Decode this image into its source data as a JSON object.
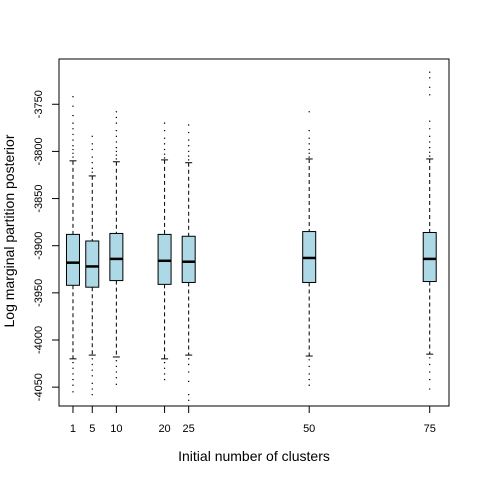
{
  "chart_data": {
    "type": "boxplot",
    "title": "",
    "xlabel": "Initial number of clusters",
    "ylabel": "Log marginal partition posterior",
    "x_ticks": [
      1,
      5,
      10,
      20,
      25,
      50,
      75
    ],
    "y_ticks": [
      -3750,
      -3800,
      -3850,
      -3900,
      -3950,
      -4000,
      -4050
    ],
    "xlim": [
      -1.9,
      79
    ],
    "ylim": [
      -4070,
      -3702
    ],
    "box_color": "#add8e6",
    "grid": false,
    "legend": "none",
    "boxes": [
      {
        "x": 1,
        "whisker_high": -3810,
        "q3": -3888,
        "median": -3918,
        "q1": -3942,
        "whisker_low": -4020,
        "outliers_high": [
          -3742,
          -3752,
          -3762,
          -3770,
          -3776,
          -3782,
          -3788,
          -3794,
          -3798,
          -3802,
          -3806
        ],
        "outliers_low": [
          -4024,
          -4030,
          -4036,
          -4042,
          -4048,
          -4055
        ]
      },
      {
        "x": 5,
        "whisker_high": -3826,
        "q3": -3895,
        "median": -3922,
        "q1": -3944,
        "whisker_low": -4016,
        "outliers_high": [
          -3784,
          -3792,
          -3798,
          -3806,
          -3812,
          -3818,
          -3822
        ],
        "outliers_low": [
          -4020,
          -4026,
          -4032,
          -4038,
          -4046,
          -4052,
          -4058
        ]
      },
      {
        "x": 10,
        "whisker_high": -3811,
        "q3": -3887,
        "median": -3914,
        "q1": -3937,
        "whisker_low": -4018,
        "outliers_high": [
          -3758,
          -3764,
          -3770,
          -3778,
          -3784,
          -3790,
          -3796,
          -3800,
          -3804,
          -3808
        ],
        "outliers_low": [
          -4022,
          -4028,
          -4034,
          -4040,
          -4047
        ]
      },
      {
        "x": 20,
        "whisker_high": -3809,
        "q3": -3888,
        "median": -3916,
        "q1": -3941,
        "whisker_low": -4020,
        "outliers_high": [
          -3770,
          -3778,
          -3786,
          -3792,
          -3798,
          -3803,
          -3807
        ],
        "outliers_low": [
          -4024,
          -4030,
          -4036,
          -4042
        ]
      },
      {
        "x": 25,
        "whisker_high": -3812,
        "q3": -3890,
        "median": -3917,
        "q1": -3939,
        "whisker_low": -4016,
        "outliers_high": [
          -3772,
          -3780,
          -3788,
          -3794,
          -3800,
          -3805,
          -3809
        ],
        "outliers_low": [
          -4020,
          -4026,
          -4034,
          -4044,
          -4058,
          -4064
        ]
      },
      {
        "x": 50,
        "whisker_high": -3808,
        "q3": -3885,
        "median": -3913,
        "q1": -3939,
        "whisker_low": -4017,
        "outliers_high": [
          -3758,
          -3778,
          -3786,
          -3792,
          -3798,
          -3802,
          -3806
        ],
        "outliers_low": [
          -4021,
          -4028,
          -4036,
          -4042,
          -4048
        ]
      },
      {
        "x": 75,
        "whisker_high": -3808,
        "q3": -3886,
        "median": -3914,
        "q1": -3938,
        "whisker_low": -4015,
        "outliers_high": [
          -3716,
          -3722,
          -3732,
          -3740,
          -3768,
          -3776,
          -3784,
          -3790,
          -3796,
          -3801,
          -3805
        ],
        "outliers_low": [
          -4019,
          -4026,
          -4034,
          -4042,
          -4052
        ]
      }
    ]
  }
}
